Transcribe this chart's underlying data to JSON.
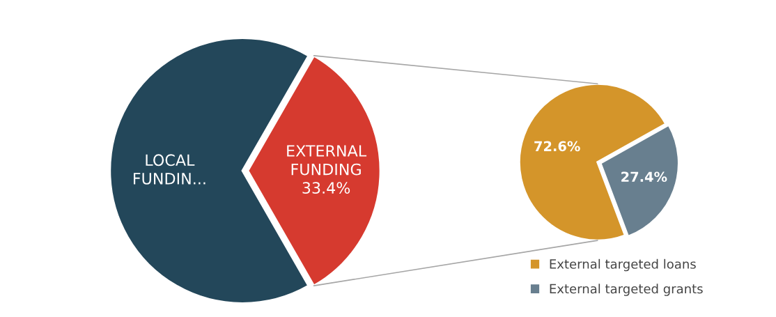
{
  "chart_data": [
    {
      "type": "pie",
      "categories": [
        "LOCAL\nFUNDIN...",
        "EXTERNAL\nFUNDING"
      ],
      "values": [
        66.6,
        33.4
      ],
      "colors": [
        "#23475a",
        "#d63a2f"
      ],
      "value_labels": [
        null,
        "33.4%"
      ]
    },
    {
      "type": "pie",
      "categories": [
        "External targeted loans",
        "External targeted grants"
      ],
      "values": [
        72.6,
        27.4
      ],
      "colors": [
        "#d4952a",
        "#687f8f"
      ],
      "value_labels": [
        "72.6%",
        "27.4%"
      ],
      "legend": "bottom"
    }
  ]
}
